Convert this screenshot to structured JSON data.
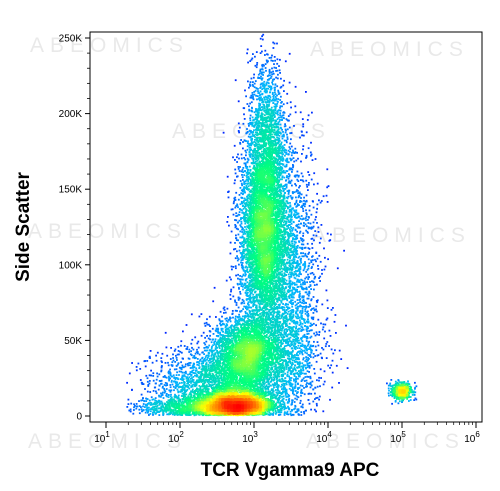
{
  "watermark": "ABEOMICS",
  "chart_data": {
    "type": "scatter",
    "subtype": "flow-cytometry-density-dot-plot",
    "xlabel": "TCR Vgamma9 APC",
    "ylabel": "Side Scatter",
    "x_scale": "log",
    "xlim": [
      10,
      1000000
    ],
    "ylim": [
      0,
      262144
    ],
    "x_ticks": [
      {
        "value": 10,
        "base": "10",
        "exp": "1"
      },
      {
        "value": 100,
        "base": "10",
        "exp": "2"
      },
      {
        "value": 1000,
        "base": "10",
        "exp": "3"
      },
      {
        "value": 10000,
        "base": "10",
        "exp": "4"
      },
      {
        "value": 100000,
        "base": "10",
        "exp": "5"
      },
      {
        "value": 1000000,
        "base": "10",
        "exp": "6"
      }
    ],
    "y_ticks": [
      {
        "value": 0,
        "label": "0"
      },
      {
        "value": 50000,
        "label": "50K"
      },
      {
        "value": 100000,
        "label": "100K"
      },
      {
        "value": 150000,
        "label": "150K"
      },
      {
        "value": 200000,
        "label": "200K"
      },
      {
        "value": 250000,
        "label": "250K"
      }
    ],
    "color_scale": [
      "#0000ff",
      "#00b4ff",
      "#00ff7f",
      "#ffff00",
      "#ff7f00",
      "#ff0000"
    ],
    "populations": [
      {
        "center_x": 550,
        "center_y": 7000,
        "spread_log_x": 0.26,
        "spread_y": 4500,
        "events": 4200
      },
      {
        "center_x": 350,
        "center_y": 22000,
        "spread_log_x": 0.45,
        "spread_y": 12000,
        "events": 2300
      },
      {
        "center_x": 800,
        "center_y": 42000,
        "spread_log_x": 0.22,
        "spread_y": 12000,
        "events": 2600
      },
      {
        "center_x": 1350,
        "center_y": 120000,
        "spread_log_x": 0.16,
        "spread_y": 32000,
        "events": 5000
      },
      {
        "center_x": 1500,
        "center_y": 185000,
        "spread_log_x": 0.13,
        "spread_y": 26000,
        "events": 1300
      },
      {
        "center_x": 3200,
        "center_y": 95000,
        "spread_log_x": 0.2,
        "spread_y": 42000,
        "events": 1500
      },
      {
        "center_x": 2500,
        "center_y": 45000,
        "spread_log_x": 0.28,
        "spread_y": 20000,
        "events": 900
      },
      {
        "center_x": 100000,
        "center_y": 16000,
        "spread_log_x": 0.07,
        "spread_y": 2800,
        "events": 500
      },
      {
        "center_x": 90,
        "center_y": 6000,
        "spread_log_x": 0.25,
        "spread_y": 3500,
        "events": 500
      }
    ]
  }
}
